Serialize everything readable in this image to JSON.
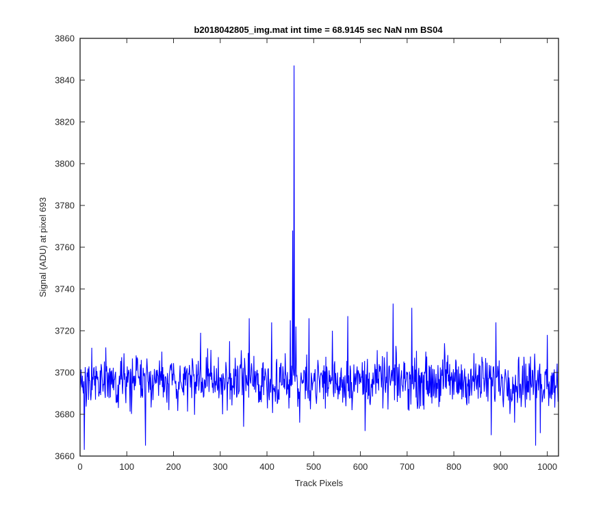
{
  "chart_data": {
    "type": "line",
    "title": "b2018042805_img.mat int time = 68.9145 sec  NaN nm BS04",
    "xlabel": "Track Pixels",
    "ylabel": "Signal (ADU) at pixel 693",
    "xlim": [
      0,
      1024
    ],
    "ylim": [
      3660,
      3860
    ],
    "xticks": [
      0,
      100,
      200,
      300,
      400,
      500,
      600,
      700,
      800,
      900,
      1000
    ],
    "yticks": [
      3660,
      3680,
      3700,
      3720,
      3740,
      3760,
      3780,
      3800,
      3820,
      3840,
      3860
    ],
    "grid": false,
    "legend": "none",
    "series": [
      {
        "color": "#0000ff",
        "n_points": 1024,
        "baseline_mean": 3696,
        "noise_spread": 11,
        "x": [
          0,
          9,
          15,
          24,
          38,
          55,
          75,
          140,
          175,
          190,
          205,
          258,
          305,
          320,
          350,
          362,
          378,
          410,
          450,
          455,
          458,
          459,
          462,
          470,
          490,
          540,
          573,
          610,
          670,
          710,
          730,
          780,
          880,
          890,
          930,
          975,
          985,
          1000,
          1010,
          1023
        ],
        "y": [
          3691,
          3663,
          3700,
          3690,
          3698,
          3712,
          3699,
          3665,
          3710,
          3682,
          3696,
          3719,
          3680,
          3715,
          3674,
          3726,
          3700,
          3724,
          3725,
          3768,
          3847,
          3700,
          3722,
          3676,
          3726,
          3720,
          3727,
          3672,
          3733,
          3731,
          3700,
          3714,
          3670,
          3724,
          3676,
          3665,
          3671,
          3718,
          3700,
          3686
        ]
      }
    ]
  }
}
